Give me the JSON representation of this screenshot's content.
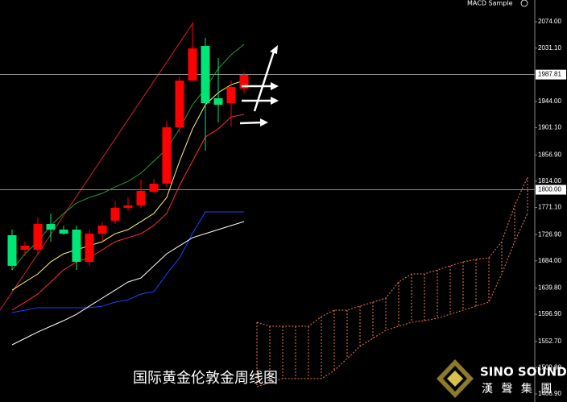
{
  "chart_data": {
    "type": "candlestick",
    "indicator": "MACD Sample",
    "caption": "国际黄金伦敦金周线图",
    "logo": {
      "name": "SINO SOUND",
      "subtitle": "漢 聲 集 團"
    },
    "ylim": [
      1453.8,
      2109.5
    ],
    "yticks": [
      {
        "value": 2074,
        "label": "2074.00"
      },
      {
        "value": 2031.1,
        "label": "2031.10"
      },
      {
        "value": 1944,
        "label": "1944.00"
      },
      {
        "value": 1901.1,
        "label": "1901.10"
      },
      {
        "value": 1856.9,
        "label": "1856.90"
      },
      {
        "value": 1814,
        "label": "1814.00"
      },
      {
        "value": 1771.1,
        "label": "1771.10"
      },
      {
        "value": 1726.9,
        "label": "1726.90"
      },
      {
        "value": 1684,
        "label": "1684.00"
      },
      {
        "value": 1639.8,
        "label": "1639.80"
      },
      {
        "value": 1596.9,
        "label": "1596.90"
      },
      {
        "value": 1552.7,
        "label": "1552.70"
      },
      {
        "value": 1509.8,
        "label": "1509.80"
      },
      {
        "value": 1466.9,
        "label": "1466.90"
      }
    ],
    "price_lines": [
      {
        "value": 1987.81,
        "label": "1987.81"
      },
      {
        "value": 1800,
        "label": "1800.00"
      }
    ],
    "candles": {
      "color_up": "#ff0000",
      "color_down": "#00e676",
      "open": [
        1725.8,
        1702.1,
        1702.1,
        1744.2,
        1735.0,
        1735.0,
        1682.4,
        1728.4,
        1749.5,
        1770.5,
        1774.4,
        1796.7,
        1809.9,
        1901.9,
        1978.1,
        2034.6,
        1949.2,
        1941.3,
        1964.9
      ],
      "high": [
        1735.0,
        1715.3,
        1754.7,
        1761.3,
        1741.6,
        1741.6,
        1735.0,
        1746.8,
        1781.0,
        1787.5,
        1816.5,
        1817.8,
        1912.4,
        1984.6,
        2072.7,
        2047.7,
        2014.9,
        1978.1,
        1991.2
      ],
      "low": [
        1669.3,
        1691.6,
        1695.6,
        1715.3,
        1725.8,
        1669.3,
        1675.9,
        1715.3,
        1744.2,
        1765.2,
        1770.5,
        1794.1,
        1804.6,
        1892.7,
        1978.1,
        1863.8,
        1909.8,
        1903.2,
        1957.1
      ],
      "close": [
        1675.9,
        1708.7,
        1744.2,
        1735.0,
        1728.4,
        1682.4,
        1728.4,
        1741.6,
        1770.5,
        1774.4,
        1798.1,
        1809.9,
        1901.9,
        1978.1,
        2030.6,
        1941.3,
        1938.7,
        1967.6,
        1987.3
      ]
    },
    "lines": [
      {
        "color": "#ffff66",
        "values": [
          1636.4,
          1649.6,
          1662.7,
          1682.4,
          1695.6,
          1702.1,
          1708.7,
          1715.3,
          1728.4,
          1735.0,
          1748.1,
          1761.3,
          1787.5,
          1846.7,
          1899.2,
          1938.7,
          1958.4,
          1971.5,
          1978.1
        ]
      },
      {
        "color": "#ff3030",
        "values": [
          1603.6,
          1616.7,
          1629.9,
          1649.6,
          1669.3,
          1682.4,
          1689.0,
          1702.1,
          1715.3,
          1721.8,
          1728.4,
          1741.6,
          1761.3,
          1807.3,
          1846.7,
          1886.1,
          1899.2,
          1918.9,
          1922.9
        ]
      },
      {
        "color": "#2e9b2e",
        "values": [
          1669.3,
          1695.6,
          1715.3,
          1741.6,
          1761.3,
          1778.3,
          1787.5,
          1794.1,
          1804.6,
          1813.8,
          1827.0,
          1846.7,
          1866.4,
          1899.2,
          1938.7,
          1964.9,
          1997.8,
          2020.1,
          2037.2
        ]
      },
      {
        "color": "#2040ff",
        "values": [
          1599.6,
          1603.6,
          1607.5,
          1607.5,
          1607.5,
          1607.5,
          1607.5,
          1610.2,
          1616.7,
          1620.7,
          1629.9,
          1633.8,
          1662.7,
          1689.0,
          1728.4,
          1763.9,
          1763.9,
          1763.9,
          1763.9
        ]
      },
      {
        "color": "#ffffff",
        "values": [
          1547.1,
          1557.6,
          1568.1,
          1577.3,
          1586.5,
          1597.0,
          1610.2,
          1623.3,
          1636.4,
          1649.6,
          1656.1,
          1675.9,
          1695.6,
          1708.7,
          1721.8,
          1728.4,
          1735.0,
          1741.6,
          1748.1
        ]
      }
    ],
    "cloud": {
      "color": "#f07850",
      "upper": [
        null,
        null,
        null,
        null,
        null,
        null,
        null,
        null,
        null,
        null,
        null,
        null,
        null,
        null,
        null,
        null,
        null,
        null,
        null,
        1583.9,
        1577.3,
        1577.3,
        1577.3,
        1577.3,
        1593.1,
        1603.6,
        1603.6,
        1610.2,
        1616.7,
        1623.3,
        1649.6,
        1662.7,
        1662.7,
        1669.3,
        1675.9,
        1682.4,
        1686.4,
        1689.0,
        1715.3,
        1774.4,
        1820.4
      ],
      "lower": [
        null,
        null,
        null,
        null,
        null,
        null,
        null,
        null,
        null,
        null,
        null,
        null,
        null,
        null,
        null,
        null,
        null,
        null,
        null,
        1478.8,
        1485.3,
        1491.9,
        1491.9,
        1491.9,
        1491.9,
        1505.0,
        1524.7,
        1544.5,
        1557.6,
        1570.7,
        1577.3,
        1583.9,
        1586.5,
        1590.4,
        1597.0,
        1603.6,
        1610.2,
        1616.7,
        1662.7,
        1715.3,
        1761.3
      ]
    }
  }
}
